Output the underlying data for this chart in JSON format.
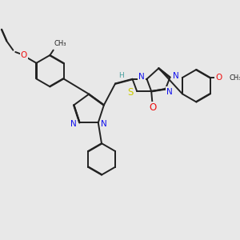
{
  "bg_color": "#e8e8e8",
  "bond_color": "#222222",
  "bond_width": 1.4,
  "dbo": 0.018,
  "atom_colors": {
    "N": "#1010ee",
    "O": "#ee1010",
    "S": "#cccc00",
    "H": "#4aa0a0",
    "C": "#222222"
  },
  "afs": 7.5
}
